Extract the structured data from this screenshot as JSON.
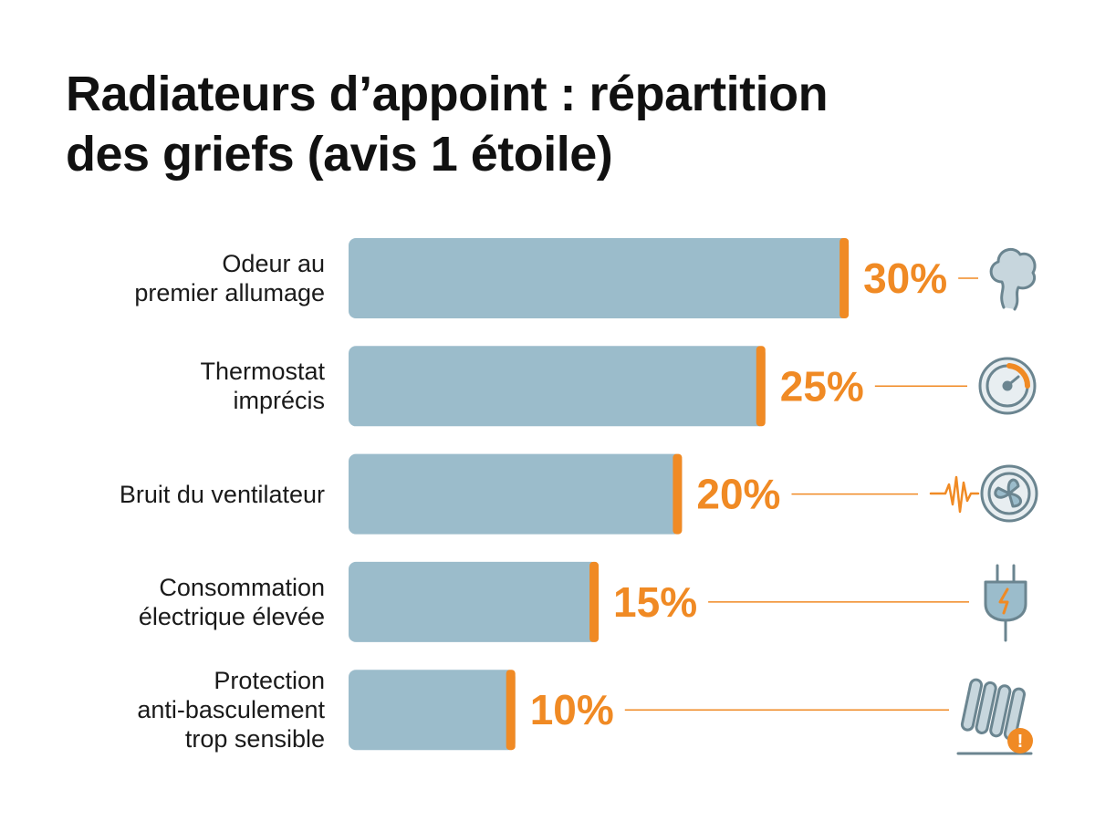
{
  "chart_data": {
    "type": "bar",
    "orientation": "horizontal",
    "title": "Radiateurs d’appoint : répartition\ndes griefs (avis 1 étoile)",
    "categories": [
      "Odeur au\npremier allumage",
      "Thermostat\nimprécis",
      "Bruit du ventilateur",
      "Consommation\nélectrique élevée",
      "Protection\nanti-basculement\ntrop sensible"
    ],
    "values": [
      30,
      25,
      20,
      15,
      10
    ],
    "value_labels": [
      "30%",
      "25%",
      "20%",
      "15%",
      "10%"
    ],
    "color": "#9bbccb",
    "accent_color": "#f08a24"
  }
}
